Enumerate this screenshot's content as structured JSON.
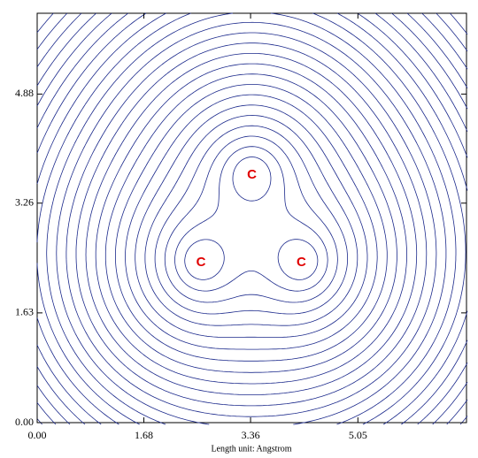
{
  "chart_data": {
    "type": "contour",
    "x_label": "Length unit: Angstrom",
    "xlim": [
      0,
      6.76
    ],
    "ylim": [
      0,
      6.08
    ],
    "xticks": [
      {
        "value": 0,
        "label": "0.00"
      },
      {
        "value": 1.68,
        "label": "1.68"
      },
      {
        "value": 3.36,
        "label": "3.36"
      },
      {
        "value": 5.05,
        "label": "5.05"
      }
    ],
    "yticks": [
      {
        "value": 0,
        "label": "0.00"
      },
      {
        "value": 1.63,
        "label": "1.63"
      },
      {
        "value": 3.26,
        "label": "3.26"
      },
      {
        "value": 4.88,
        "label": "4.88"
      }
    ],
    "color": "#1c2a8c",
    "label_color": "#e00000",
    "atoms": [
      {
        "label": "C",
        "x": 3.38,
        "y": 3.69
      },
      {
        "label": "C",
        "x": 2.58,
        "y": 2.39
      },
      {
        "label": "C",
        "x": 4.16,
        "y": 2.39
      }
    ]
  }
}
